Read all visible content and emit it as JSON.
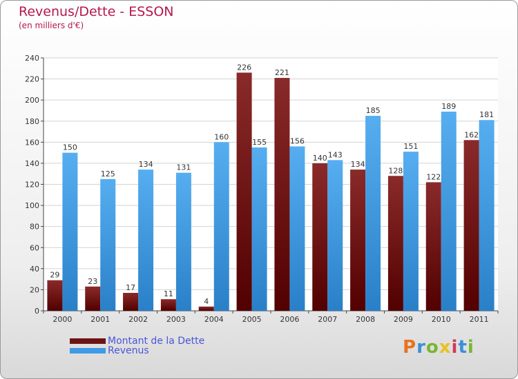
{
  "header": {
    "title": "Revenus/Dette - ESSON",
    "subtitle": "(en milliers d'€)"
  },
  "legend": {
    "items": [
      {
        "label": "Montant de la Dette",
        "color": "#6e1414"
      },
      {
        "label": "Revenus",
        "color": "#3f9ae6"
      }
    ]
  },
  "logo": {
    "text": "Proxiti",
    "colors": [
      "#e8731e",
      "#3b8fd9",
      "#7bb531",
      "#e8c21e",
      "#d2385a",
      "#3b8fd9",
      "#7bb531"
    ]
  },
  "chart_data": {
    "type": "bar",
    "title": "Revenus/Dette - ESSON",
    "ylabel": "(en milliers d'€)",
    "xlabel": "",
    "ylim": [
      0,
      240
    ],
    "yticks": [
      0,
      20,
      40,
      60,
      80,
      100,
      120,
      140,
      160,
      180,
      200,
      220,
      240
    ],
    "grid": true,
    "legend_position": "bottom-left",
    "categories": [
      "2000",
      "2001",
      "2002",
      "2003",
      "2004",
      "2005",
      "2006",
      "2007",
      "2008",
      "2009",
      "2010",
      "2011"
    ],
    "series": [
      {
        "name": "Montant de la Dette",
        "color": "#6e1414",
        "values": [
          29,
          23,
          17,
          11,
          4,
          226,
          221,
          140,
          134,
          128,
          122,
          162
        ]
      },
      {
        "name": "Revenus",
        "color": "#3f9ae6",
        "values": [
          150,
          125,
          134,
          131,
          160,
          155,
          156,
          143,
          185,
          151,
          189,
          181
        ]
      }
    ]
  }
}
